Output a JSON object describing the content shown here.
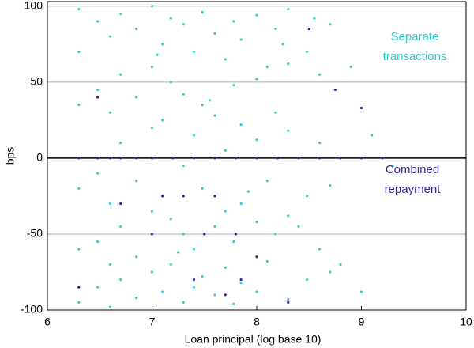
{
  "chart_data": {
    "type": "scatter",
    "xlabel": "Loan principal (log base 10)",
    "ylabel": "bps",
    "xlim": [
      6,
      10
    ],
    "ylim": [
      -100,
      103
    ],
    "xticks": [
      6,
      7,
      8,
      9,
      10
    ],
    "yticks": [
      -100,
      -50,
      0,
      50,
      100
    ],
    "grid": true,
    "annotations": [
      {
        "lines": [
          "Separate",
          "transactions"
        ],
        "color": "#33cccc"
      },
      {
        "lines": [
          "Combined",
          "repayment"
        ],
        "color": "#3b1fa0"
      }
    ],
    "series": [
      {
        "color": "#33cccc",
        "x": [
          6.3,
          6.3,
          6.3,
          6.3,
          6.3,
          6.3,
          6.48,
          6.48,
          6.48,
          6.48,
          6.48,
          6.6,
          6.6,
          6.6,
          6.6,
          6.6,
          6.7,
          6.7,
          6.7,
          6.7,
          6.7,
          6.85,
          6.85,
          6.85,
          6.85,
          6.85,
          7.0,
          7.0,
          7.0,
          7.0,
          7.0,
          7.1,
          7.1,
          7.1,
          7.1,
          7.18,
          7.18,
          7.18,
          7.18,
          7.3,
          7.3,
          7.3,
          7.3,
          7.3,
          7.4,
          7.4,
          7.4,
          7.4,
          7.48,
          7.48,
          7.48,
          7.48,
          7.6,
          7.6,
          7.6,
          7.6,
          7.7,
          7.7,
          7.7,
          7.7,
          7.78,
          7.78,
          7.78,
          7.78,
          7.85,
          7.85,
          7.85,
          7.85,
          8.0,
          8.0,
          8.0,
          8.0,
          8.0,
          8.1,
          8.1,
          8.1,
          8.18,
          8.18,
          8.18,
          8.3,
          8.3,
          8.3,
          8.3,
          8.3,
          8.48,
          8.48,
          8.48,
          8.6,
          8.6,
          8.6,
          8.7,
          8.7,
          8.7,
          7.05,
          7.25,
          7.55,
          7.92,
          8.25,
          8.4,
          8.55,
          8.8,
          8.9,
          9.0,
          9.1,
          9.3
        ],
        "values": [
          98,
          70,
          35,
          -20,
          -60,
          -95,
          90,
          45,
          -10,
          -55,
          -85,
          80,
          30,
          -30,
          -70,
          -98,
          95,
          55,
          10,
          -45,
          -80,
          85,
          40,
          -15,
          -65,
          -92,
          100,
          60,
          20,
          -35,
          -75,
          75,
          25,
          -25,
          -88,
          92,
          50,
          -40,
          -70,
          88,
          42,
          -5,
          -50,
          -95,
          70,
          15,
          -60,
          -85,
          96,
          35,
          -20,
          -78,
          82,
          28,
          -45,
          -90,
          65,
          5,
          -35,
          -72,
          90,
          48,
          -55,
          -96,
          78,
          22,
          -30,
          -82,
          94,
          52,
          12,
          -42,
          -88,
          60,
          -15,
          -68,
          85,
          30,
          -50,
          98,
          62,
          18,
          -38,
          -93,
          70,
          -25,
          -80,
          55,
          10,
          -60,
          88,
          -18,
          -75,
          68,
          -62,
          38,
          -22,
          75,
          -45,
          92,
          -70,
          60,
          -88,
          15,
          -5
        ]
      },
      {
        "color": "#3b1fa0",
        "x": [
          6.3,
          6.48,
          6.6,
          6.7,
          6.85,
          7.0,
          7.2,
          7.4,
          7.6,
          7.8,
          8.0,
          8.2,
          8.4,
          8.6,
          8.8,
          9.0,
          9.2,
          6.3,
          6.48,
          6.7,
          7.0,
          7.1,
          7.3,
          7.4,
          7.5,
          7.6,
          7.7,
          7.8,
          7.85,
          8.0,
          8.3,
          8.5,
          8.75,
          9.0
        ],
        "values": [
          0,
          0,
          0,
          0,
          0,
          0,
          0,
          0,
          0,
          0,
          0,
          0,
          0,
          0,
          0,
          0,
          0,
          -85,
          40,
          -30,
          -50,
          -25,
          -25,
          -80,
          -50,
          -25,
          -90,
          -50,
          -80,
          -65,
          -95,
          85,
          45,
          33
        ]
      }
    ]
  }
}
